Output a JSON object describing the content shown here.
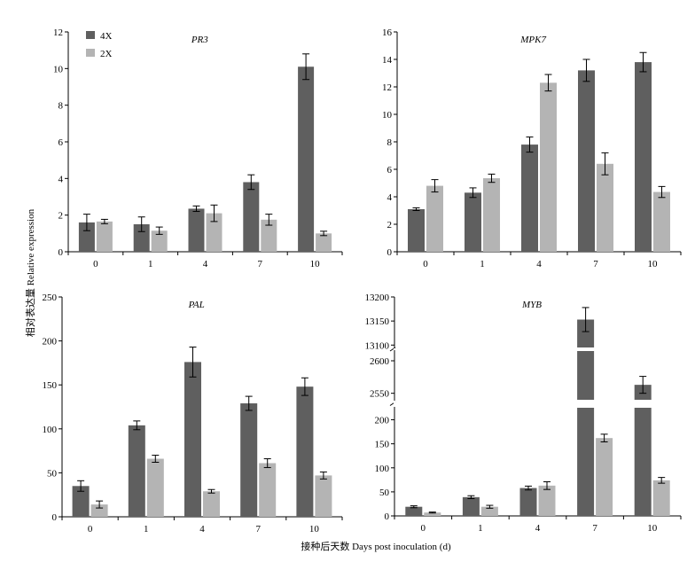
{
  "chart_data": {
    "type": "bar",
    "xlabel": "接种后天数 Days post inoculation (d)",
    "ylabel": "相对表达量 Relative expression",
    "legend": {
      "placement": "top-left",
      "entries": [
        "4X",
        "2X"
      ]
    },
    "colors": {
      "4X": "#5f5f5f",
      "2X": "#b4b4b4"
    },
    "grid": false,
    "panels": [
      {
        "id": "pr3",
        "title": "PR3",
        "categories": [
          "0",
          "1",
          "4",
          "7",
          "10"
        ],
        "ylim": [
          0,
          12
        ],
        "yticks": [
          "0",
          "2",
          "4",
          "6",
          "8",
          "10",
          "12"
        ],
        "series": [
          {
            "name": "4X",
            "values": [
              1.6,
              1.5,
              2.35,
              3.8,
              10.1
            ],
            "errors": [
              0.45,
              0.4,
              0.15,
              0.4,
              0.7
            ]
          },
          {
            "name": "2X",
            "values": [
              1.65,
              1.15,
              2.1,
              1.75,
              1.0
            ],
            "errors": [
              0.12,
              0.2,
              0.45,
              0.3,
              0.12
            ]
          }
        ]
      },
      {
        "id": "mpk7",
        "title": "MPK7",
        "categories": [
          "0",
          "1",
          "4",
          "7",
          "10"
        ],
        "ylim": [
          0,
          16
        ],
        "yticks": [
          "0",
          "2",
          "4",
          "6",
          "8",
          "10",
          "12",
          "14",
          "16"
        ],
        "series": [
          {
            "name": "4X",
            "values": [
              3.1,
              4.3,
              7.8,
              13.2,
              13.8
            ],
            "errors": [
              0.1,
              0.35,
              0.55,
              0.8,
              0.7
            ]
          },
          {
            "name": "2X",
            "values": [
              4.8,
              5.35,
              12.3,
              6.4,
              4.35
            ],
            "errors": [
              0.45,
              0.3,
              0.6,
              0.8,
              0.4
            ]
          }
        ]
      },
      {
        "id": "pal",
        "title": "PAL",
        "categories": [
          "0",
          "1",
          "4",
          "7",
          "10"
        ],
        "ylim": [
          0,
          250
        ],
        "yticks": [
          "0",
          "50",
          "100",
          "150",
          "200",
          "250"
        ],
        "series": [
          {
            "name": "4X",
            "values": [
              35,
              104,
              176,
              129,
              148
            ],
            "errors": [
              6,
              5,
              17,
              8,
              10
            ]
          },
          {
            "name": "2X",
            "values": [
              14,
              66,
              29,
              61,
              47
            ],
            "errors": [
              4,
              4,
              2,
              5,
              4
            ]
          }
        ]
      },
      {
        "id": "myb",
        "title": "MYB",
        "categories": [
          "0",
          "1",
          "4",
          "7",
          "10"
        ],
        "ylim": [
          0,
          13200
        ],
        "broken_axis": [
          [
            0,
            225
          ],
          [
            2540,
            2615
          ],
          [
            13095,
            13200
          ]
        ],
        "yticks": [
          "0",
          "50",
          "100",
          "150",
          "200",
          "2550",
          "2600",
          "13100",
          "13150",
          "13200"
        ],
        "series": [
          {
            "name": "4X",
            "values": [
              19,
              39,
              58,
              13153,
              2563
            ],
            "errors": [
              2,
              3,
              4,
              25,
              13
            ]
          },
          {
            "name": "2X",
            "values": [
              7,
              19,
              63,
              162,
              74
            ],
            "errors": [
              1,
              3,
              8,
              8,
              6
            ]
          }
        ]
      }
    ]
  }
}
